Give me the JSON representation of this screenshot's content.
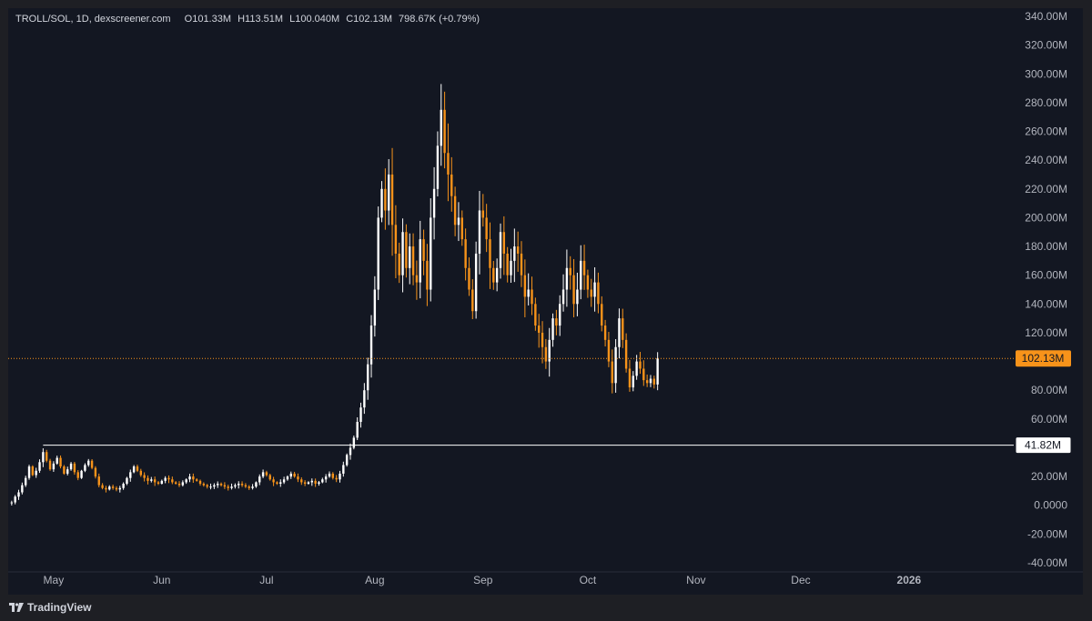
{
  "legend": {
    "symbol": "TROLL/SOL, 1D, dexscreener.com",
    "open_key": "O",
    "open": "101.33M",
    "high_key": "H",
    "high": "113.51M",
    "low_key": "L",
    "low": "100.040M",
    "close_key": "C",
    "close": "102.13M",
    "change": "798.67K (+0.79%)"
  },
  "branding": {
    "name": "TradingView"
  },
  "colors": {
    "background": "#131722",
    "frame": "#1e1f24",
    "up_candle": "#ffffff",
    "down_candle": "#f7931a",
    "price_line": "#f7931a",
    "level_line": "#ffffff",
    "axis_text": "#b2b5be"
  },
  "chart_data": {
    "type": "candlestick",
    "title": "",
    "xlabel": "",
    "ylabel": "",
    "ylim": [
      -40000000,
      340000000
    ],
    "y_ticks": [
      {
        "value": 340000000,
        "label": "340.00M"
      },
      {
        "value": 320000000,
        "label": "320.00M"
      },
      {
        "value": 300000000,
        "label": "300.00M"
      },
      {
        "value": 280000000,
        "label": "280.00M"
      },
      {
        "value": 260000000,
        "label": "260.00M"
      },
      {
        "value": 240000000,
        "label": "240.00M"
      },
      {
        "value": 220000000,
        "label": "220.00M"
      },
      {
        "value": 200000000,
        "label": "200.00M"
      },
      {
        "value": 180000000,
        "label": "180.00M"
      },
      {
        "value": 160000000,
        "label": "160.00M"
      },
      {
        "value": 140000000,
        "label": "140.00M"
      },
      {
        "value": 120000000,
        "label": "120.00M"
      },
      {
        "value": 80000000,
        "label": "80.00M"
      },
      {
        "value": 60000000,
        "label": "60.00M"
      },
      {
        "value": 20000000,
        "label": "20.00M"
      },
      {
        "value": 0,
        "label": "0.0000"
      },
      {
        "value": -20000000,
        "label": "-20.00M"
      },
      {
        "value": -40000000,
        "label": "-40.00M"
      }
    ],
    "x_range": [
      "2025-04-18",
      "2026-01-31"
    ],
    "x_ticks": [
      {
        "date": "2025-05-01",
        "label": "May"
      },
      {
        "date": "2025-06-01",
        "label": "Jun"
      },
      {
        "date": "2025-07-01",
        "label": "Jul"
      },
      {
        "date": "2025-08-01",
        "label": "Aug"
      },
      {
        "date": "2025-09-01",
        "label": "Sep"
      },
      {
        "date": "2025-10-01",
        "label": "Oct"
      },
      {
        "date": "2025-11-01",
        "label": "Nov"
      },
      {
        "date": "2025-12-01",
        "label": "Dec"
      },
      {
        "date": "2026-01-01",
        "label": "2026"
      }
    ],
    "last_price": {
      "value": 102130000,
      "label": "102.13M"
    },
    "level_line": {
      "value": 41820000,
      "label": "41.82M",
      "start_date": "2025-04-28"
    },
    "series": [
      {
        "start_date": "2025-04-19",
        "interval_days": 1,
        "close": [
          2000000,
          6000000,
          9000000,
          14000000,
          19000000,
          27000000,
          21000000,
          24000000,
          30000000,
          37000000,
          31000000,
          25000000,
          29000000,
          33000000,
          27000000,
          22000000,
          25000000,
          29000000,
          23000000,
          19000000,
          24000000,
          28000000,
          31000000,
          26000000,
          20000000,
          14000000,
          12000000,
          11000000,
          13000000,
          12000000,
          11000000,
          12000000,
          15000000,
          19000000,
          23000000,
          27000000,
          24000000,
          21000000,
          19000000,
          17000000,
          18000000,
          16000000,
          15000000,
          17000000,
          19000000,
          18000000,
          16000000,
          15000000,
          14000000,
          16000000,
          18000000,
          20000000,
          18000000,
          17000000,
          15000000,
          14000000,
          13000000,
          13000000,
          14000000,
          15000000,
          14000000,
          13000000,
          12000000,
          13000000,
          14000000,
          15000000,
          14000000,
          13000000,
          12000000,
          13000000,
          16000000,
          20000000,
          23000000,
          21000000,
          18000000,
          16000000,
          15000000,
          16000000,
          18000000,
          20000000,
          22000000,
          20000000,
          18000000,
          16000000,
          15000000,
          16000000,
          17000000,
          15000000,
          16000000,
          18000000,
          20000000,
          22000000,
          19000000,
          18000000,
          22000000,
          28000000,
          35000000,
          40000000,
          47000000,
          58000000,
          68000000,
          80000000,
          98000000,
          125000000,
          150000000,
          200000000,
          220000000,
          205000000,
          230000000,
          195000000,
          175000000,
          160000000,
          190000000,
          165000000,
          180000000,
          160000000,
          155000000,
          185000000,
          170000000,
          150000000,
          200000000,
          220000000,
          250000000,
          275000000,
          245000000,
          230000000,
          215000000,
          195000000,
          200000000,
          185000000,
          165000000,
          150000000,
          135000000,
          175000000,
          205000000,
          200000000,
          185000000,
          165000000,
          155000000,
          165000000,
          190000000,
          175000000,
          160000000,
          170000000,
          180000000,
          175000000,
          160000000,
          145000000,
          150000000,
          140000000,
          125000000,
          120000000,
          110000000,
          100000000,
          115000000,
          130000000,
          125000000,
          140000000,
          150000000,
          165000000,
          160000000,
          140000000,
          150000000,
          170000000,
          160000000,
          150000000,
          145000000,
          155000000,
          140000000,
          125000000,
          115000000,
          100000000,
          85000000,
          110000000,
          130000000,
          115000000,
          95000000,
          82000000,
          90000000,
          100000000,
          95000000,
          87000000,
          85000000,
          88000000,
          84000000,
          102130000
        ]
      }
    ]
  }
}
